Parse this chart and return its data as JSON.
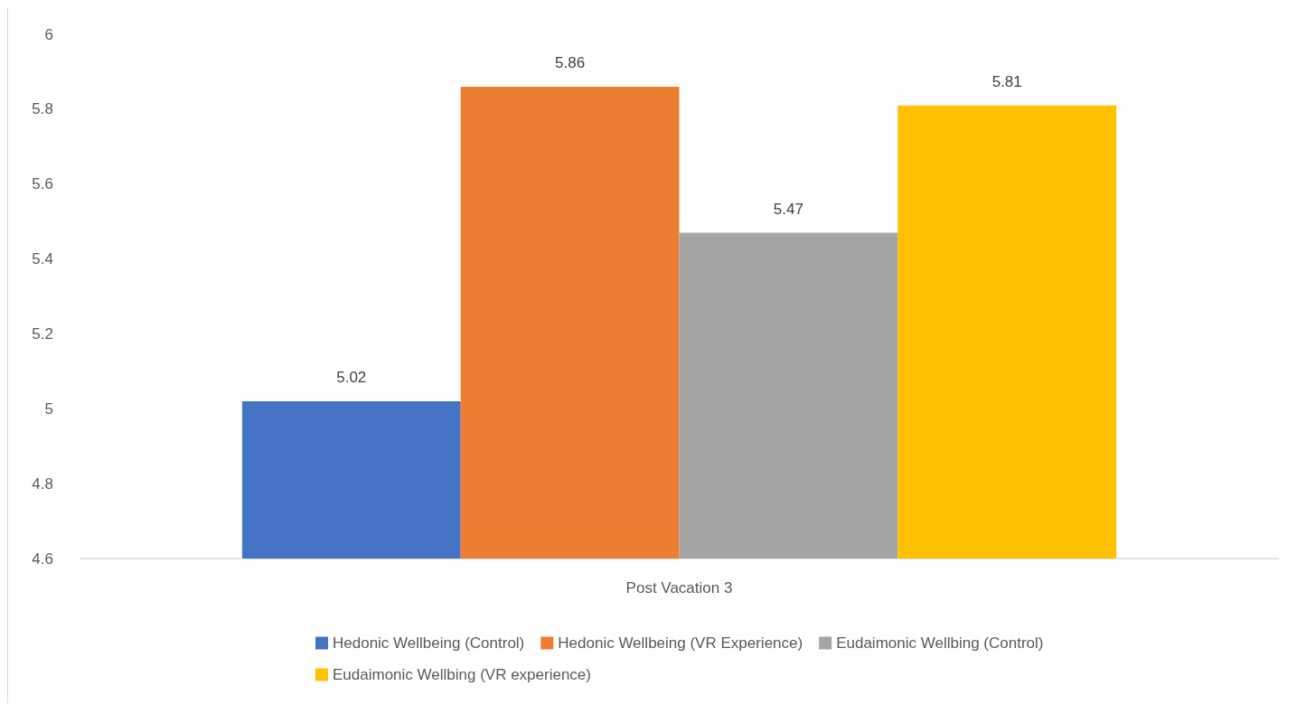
{
  "chart_data": {
    "type": "bar",
    "categories": [
      "Post Vacation 3"
    ],
    "series": [
      {
        "name": "Hedonic Wellbeing (Control)",
        "color": "#4472c4",
        "values": [
          5.02
        ]
      },
      {
        "name": "Hedonic Wellbeing (VR Experience)",
        "color": "#ed7d31",
        "values": [
          5.86
        ]
      },
      {
        "name": "Eudaimonic Wellbing (Control)",
        "color": "#a5a5a5",
        "values": [
          5.47
        ]
      },
      {
        "name": "Eudaimonic Wellbing (VR experience)",
        "color": "#ffc000",
        "values": [
          5.81
        ]
      }
    ],
    "ylim": [
      4.6,
      6
    ],
    "yticks": [
      4.6,
      4.8,
      5,
      5.2,
      5.4,
      5.6,
      5.8,
      6
    ],
    "grid": false,
    "legend": "bottom",
    "data_labels": true
  }
}
